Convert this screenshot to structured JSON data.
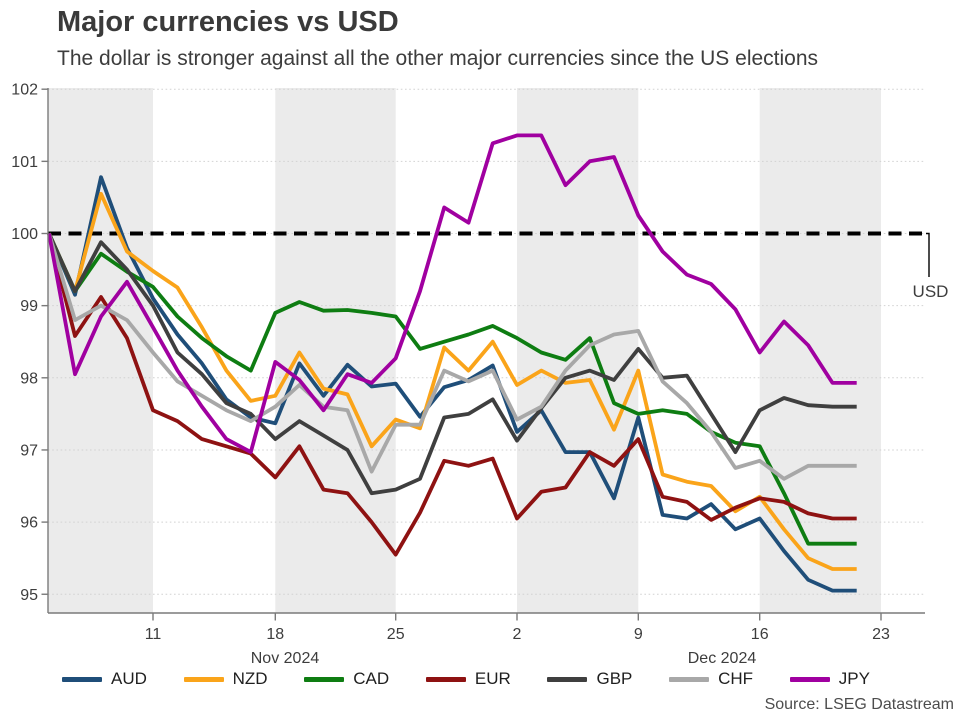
{
  "header": {
    "title": "Major currencies vs USD",
    "subtitle": "The dollar is stronger against all the other major currencies since the US elections"
  },
  "source_note": "Source: LSEG Datastream",
  "colors": {
    "background": "#ffffff",
    "week_band": "#ebebeb",
    "gridline": "#d2d2d2",
    "axis": "#7a7a7a",
    "baseline": "#000000",
    "text": "#3d3d3d"
  },
  "chart_data": {
    "type": "line",
    "title": "Major currencies vs USD",
    "subtitle": "The dollar is stronger against all the other major currencies since the US elections",
    "xlabel": "",
    "ylabel": "",
    "ylim": [
      94.7,
      102.1
    ],
    "y_ticks": [
      95,
      96,
      97,
      98,
      99,
      100,
      101,
      102
    ],
    "grid": "dotted-horizontal",
    "legend_position": "bottom",
    "baseline": {
      "value": 100,
      "label": "USD",
      "style": "dashed-black"
    },
    "shaded_weeks": [
      "Nov 5-Nov 11",
      "Nov 18-Nov 25",
      "Dec 2-Dec 9",
      "Dec 16-Dec 23"
    ],
    "x_tick_labels": [
      "11",
      "18",
      "25",
      "2",
      "9",
      "16",
      "23"
    ],
    "x_tick_dates": [
      "Nov 11",
      "Nov 18",
      "Nov 25",
      "Dec 2",
      "Dec 9",
      "Dec 16",
      "Dec 23"
    ],
    "month_labels": [
      "Nov 2024",
      "Dec 2024"
    ],
    "x_dates": [
      "Nov 5",
      "Nov 6",
      "Nov 7",
      "Nov 8",
      "Nov 11",
      "Nov 12",
      "Nov 13",
      "Nov 14",
      "Nov 15",
      "Nov 18",
      "Nov 19",
      "Nov 20",
      "Nov 21",
      "Nov 22",
      "Nov 25",
      "Nov 26",
      "Nov 27",
      "Nov 28",
      "Nov 29",
      "Dec 2",
      "Dec 3",
      "Dec 4",
      "Dec 5",
      "Dec 6",
      "Dec 9",
      "Dec 10",
      "Dec 11",
      "Dec 12",
      "Dec 13",
      "Dec 16",
      "Dec 17",
      "Dec 18",
      "Dec 19",
      "Dec 20"
    ],
    "series": [
      {
        "name": "AUD",
        "color": "#1f4e79",
        "values": [
          100,
          99.15,
          100.78,
          99.8,
          99.1,
          98.6,
          98.2,
          97.7,
          97.45,
          97.37,
          98.2,
          97.75,
          98.18,
          97.88,
          97.92,
          97.46,
          97.87,
          97.97,
          98.17,
          97.25,
          97.55,
          96.97,
          96.97,
          96.33,
          97.45,
          96.1,
          96.05,
          96.25,
          95.9,
          96.05,
          95.6,
          95.2,
          95.05,
          95.05
        ]
      },
      {
        "name": "NZD",
        "color": "#faa41a",
        "values": [
          100,
          99.2,
          100.55,
          99.75,
          99.48,
          99.25,
          98.7,
          98.1,
          97.68,
          97.75,
          98.35,
          97.85,
          97.77,
          97.05,
          97.42,
          97.3,
          98.42,
          98.1,
          98.5,
          97.9,
          98.1,
          97.93,
          97.97,
          97.28,
          98.1,
          96.66,
          96.56,
          96.5,
          96.15,
          96.35,
          95.9,
          95.5,
          95.35,
          95.35
        ]
      },
      {
        "name": "CAD",
        "color": "#0e7d12",
        "values": [
          100,
          99.2,
          99.72,
          99.47,
          99.26,
          98.85,
          98.55,
          98.3,
          98.1,
          98.9,
          99.05,
          98.93,
          98.94,
          98.9,
          98.85,
          98.4,
          98.5,
          98.6,
          98.72,
          98.55,
          98.35,
          98.25,
          98.55,
          97.65,
          97.5,
          97.55,
          97.5,
          97.25,
          97.1,
          97.05,
          96.4,
          95.7,
          95.7,
          95.7
        ]
      },
      {
        "name": "EUR",
        "color": "#8e1212",
        "values": [
          100,
          98.58,
          99.12,
          98.55,
          97.55,
          97.4,
          97.15,
          97.05,
          96.95,
          96.62,
          97.05,
          96.45,
          96.4,
          96.0,
          95.55,
          96.13,
          96.85,
          96.78,
          96.88,
          96.05,
          96.42,
          96.48,
          96.97,
          96.78,
          97.15,
          96.35,
          96.28,
          96.03,
          96.2,
          96.33,
          96.28,
          96.12,
          96.05,
          96.05
        ]
      },
      {
        "name": "GBP",
        "color": "#3f3f3f",
        "values": [
          100,
          99.2,
          99.88,
          99.5,
          99.0,
          98.35,
          98.05,
          97.65,
          97.5,
          97.15,
          97.4,
          97.2,
          97.0,
          96.4,
          96.45,
          96.6,
          97.45,
          97.5,
          97.7,
          97.13,
          97.58,
          98.0,
          98.1,
          97.97,
          98.4,
          98.0,
          98.03,
          97.5,
          96.97,
          97.55,
          97.72,
          97.62,
          97.6,
          97.6
        ]
      },
      {
        "name": "CHF",
        "color": "#a8a8a8",
        "values": [
          100,
          98.8,
          99.0,
          98.8,
          98.35,
          97.95,
          97.75,
          97.55,
          97.4,
          97.6,
          97.9,
          97.6,
          97.55,
          96.7,
          97.35,
          97.35,
          98.1,
          97.95,
          98.1,
          97.42,
          97.6,
          98.1,
          98.45,
          98.6,
          98.65,
          97.95,
          97.65,
          97.25,
          96.75,
          96.85,
          96.6,
          96.78,
          96.78,
          96.78
        ]
      },
      {
        "name": "JPY",
        "color": "#a000a0",
        "values": [
          100,
          98.05,
          98.85,
          99.33,
          98.7,
          98.1,
          97.6,
          97.15,
          96.97,
          98.22,
          97.97,
          97.55,
          98.05,
          97.93,
          98.27,
          99.2,
          100.36,
          100.15,
          101.25,
          101.36,
          101.36,
          100.67,
          101.0,
          101.06,
          100.25,
          99.75,
          99.43,
          99.3,
          98.95,
          98.35,
          98.78,
          98.45,
          97.93,
          97.93
        ]
      }
    ]
  }
}
